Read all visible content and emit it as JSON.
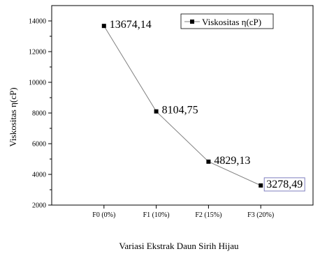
{
  "chart_data": {
    "type": "line",
    "categories": [
      "F0 (0%)",
      "F1 (10%)",
      "F2 (15%)",
      "F3 (20%)"
    ],
    "series": [
      {
        "name": "Viskositas η(cP)",
        "values": [
          13674.14,
          8104.75,
          4829.13,
          3278.49
        ]
      }
    ],
    "data_labels": [
      "13674,14",
      "8104,75",
      "4829,13",
      "3278,49"
    ],
    "xlabel": "Variasi Ekstrak Daun Sirih Hijau",
    "ylabel": "Viskositas η(cP)",
    "ylim": [
      2000,
      15000
    ],
    "yticks": [
      2000,
      4000,
      6000,
      8000,
      10000,
      12000,
      14000
    ],
    "grid": false,
    "legend_position": "top-right",
    "line_color": "#808080",
    "marker_color": "#000000"
  }
}
